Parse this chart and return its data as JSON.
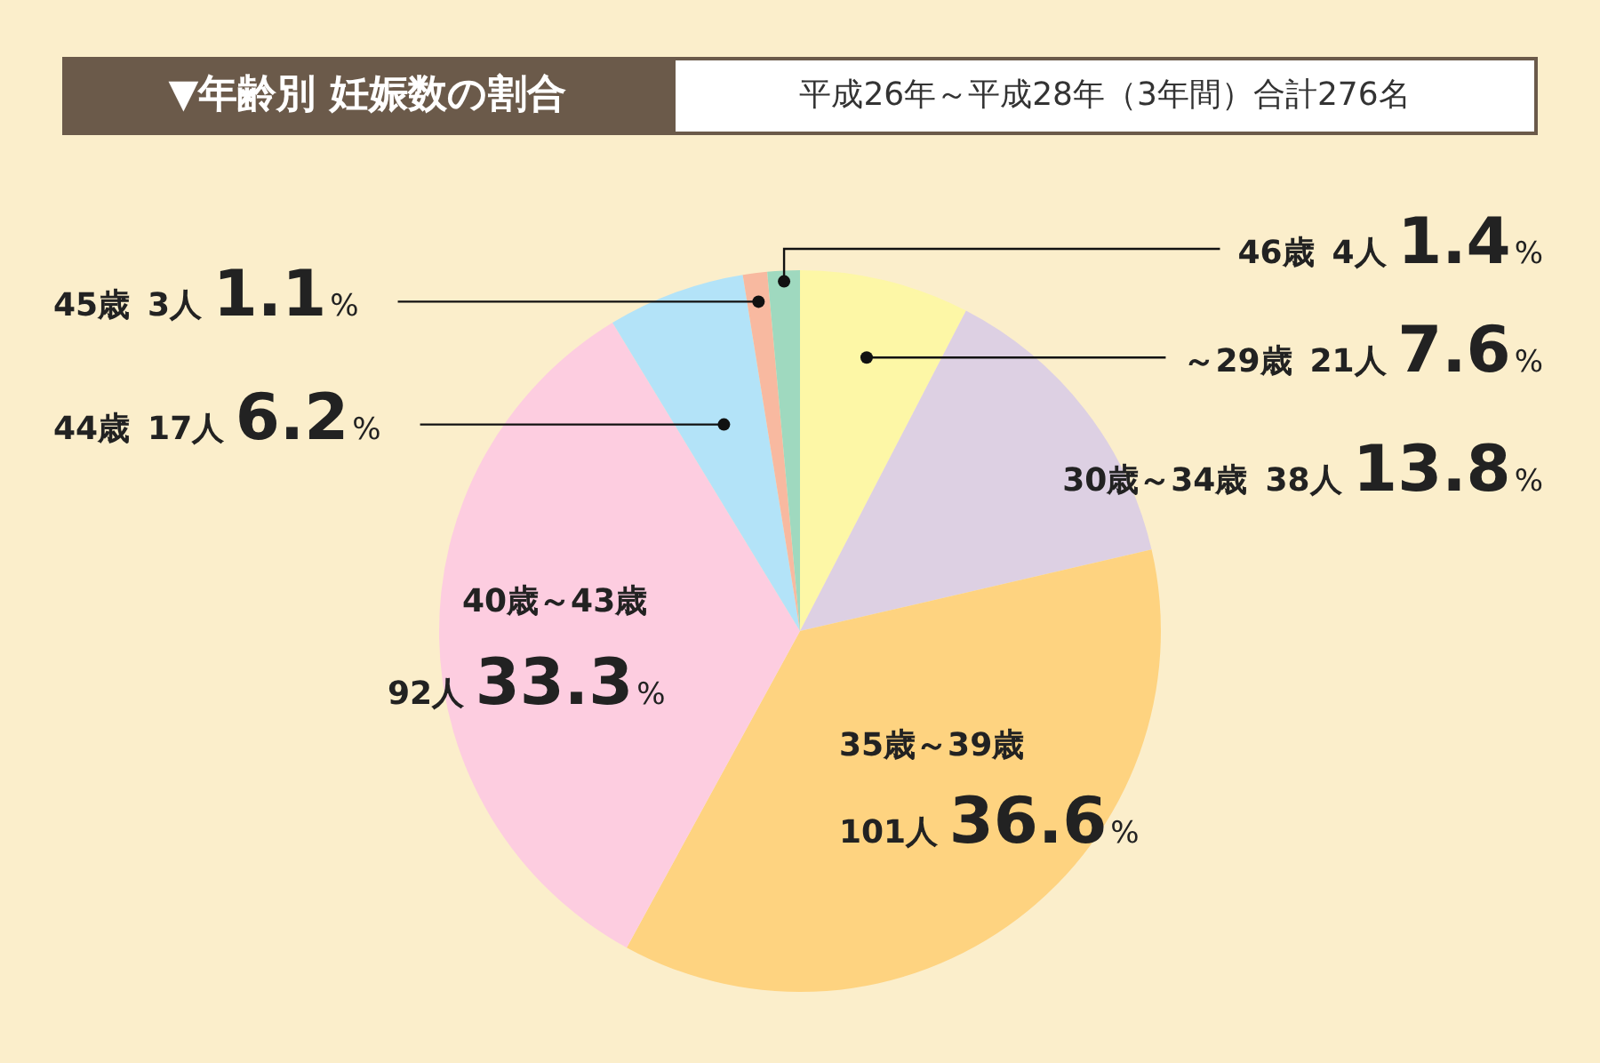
{
  "chart_data": {
    "type": "pie",
    "title": "▼年齢別 妊娠数の割合",
    "subtitle": "平成26年～平成28年（3年間）合計276名",
    "categories": [
      "～29歳",
      "30歳～34歳",
      "35歳～39歳",
      "40歳～43歳",
      "44歳",
      "45歳",
      "46歳"
    ],
    "values": [
      21,
      38,
      101,
      92,
      17,
      3,
      4
    ],
    "value_labels": [
      "21人 7.6%",
      "38人 13.8%",
      "101人 36.6%",
      "92人 33.3%",
      "17人 6.2%",
      "3人 1.1%",
      "4人 1.4%"
    ],
    "colors": [
      "#fdf7a6",
      "#ddd0e3",
      "#fed380",
      "#fdcde0",
      "#b3e3f8",
      "#f8b9a0",
      "#9fd9bf"
    ]
  }
}
